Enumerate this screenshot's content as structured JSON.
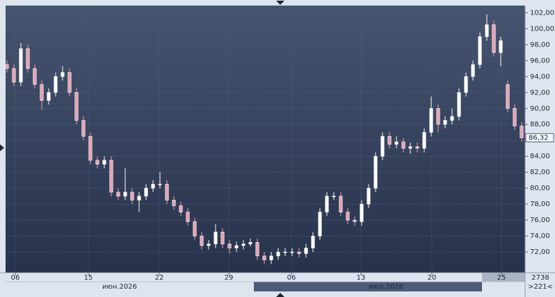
{
  "chart_data": {
    "type": "candlestick",
    "open": [
      95.5,
      95,
      93.3,
      97.5,
      95,
      93,
      91,
      92,
      94,
      94.5,
      92,
      88.5,
      86.5,
      83.5,
      83,
      83.5,
      79.5,
      79,
      79.5,
      78.5,
      79,
      80,
      80.5,
      80.5,
      78.5,
      77.8,
      77,
      75.8,
      74,
      72.8,
      73,
      74.5,
      73,
      72.5,
      72.8,
      73,
      73.2,
      71.5,
      71,
      71.5,
      72,
      72,
      72,
      71.8,
      72.5,
      74,
      77,
      79,
      79,
      77,
      76,
      75.8,
      78,
      80,
      84,
      86.5,
      85.5,
      85.8,
      85,
      85.2,
      85,
      87,
      90,
      88,
      88.5,
      89,
      92,
      94,
      95.5,
      99,
      100.5,
      97,
      93,
      90,
      87.8
    ],
    "high": [
      96,
      95.5,
      98.2,
      98,
      95.5,
      93.5,
      92.5,
      94.5,
      95.3,
      95,
      92.5,
      89,
      87,
      84,
      84,
      84,
      80,
      82.5,
      80,
      79.5,
      80.5,
      81,
      82,
      81,
      79,
      78.3,
      77.5,
      76.3,
      74.5,
      73.5,
      75.5,
      75,
      73.5,
      73.3,
      73.5,
      73.7,
      73.7,
      72,
      72,
      72.5,
      72.5,
      72.5,
      72.5,
      73,
      74.5,
      77.5,
      79.5,
      79.5,
      79.5,
      77.5,
      76.5,
      78.5,
      80.5,
      84.5,
      87,
      87,
      86.5,
      86.3,
      85.7,
      85.7,
      87.5,
      91.5,
      90.5,
      89,
      90,
      92.5,
      94.5,
      96,
      99.5,
      101.8,
      101,
      99,
      93.5,
      90.5,
      88.3
    ],
    "low": [
      94.5,
      92.8,
      92.8,
      94.5,
      92.5,
      89.8,
      90.5,
      91.5,
      93.5,
      91.5,
      88,
      86,
      83,
      82.5,
      82.5,
      79,
      78.5,
      78.5,
      78,
      77,
      78.5,
      79.5,
      80,
      78,
      77.3,
      76.5,
      75.3,
      73.5,
      72.3,
      72.3,
      72.5,
      72.5,
      71.8,
      72,
      72.3,
      72.7,
      71,
      70.5,
      70.5,
      71,
      71.5,
      71.5,
      71.3,
      71.3,
      72,
      73.5,
      76.5,
      78.5,
      76.5,
      75.5,
      75.3,
      75.3,
      77.5,
      79.5,
      83.5,
      85,
      85,
      84.5,
      84.3,
      84.5,
      84.5,
      86.5,
      87,
      87.5,
      88,
      88.5,
      91.5,
      93.5,
      95,
      98.5,
      96.5,
      95.3,
      89.5,
      87.3,
      85.8
    ],
    "close": [
      95,
      93.3,
      97.5,
      95,
      93,
      91,
      92,
      94,
      94.5,
      92,
      88.5,
      86.5,
      83.5,
      83,
      83.5,
      79.5,
      79,
      79.5,
      78.5,
      79,
      80,
      80.5,
      80.5,
      78.5,
      77.8,
      77,
      75.8,
      74,
      72.8,
      73,
      74.5,
      73,
      72.5,
      72.8,
      73,
      73.2,
      71.5,
      71,
      71.5,
      72,
      72,
      72,
      71.8,
      72.5,
      74,
      77,
      79,
      79,
      77,
      76,
      75.8,
      78,
      80,
      84,
      86.5,
      85.5,
      85.8,
      85,
      85.2,
      85,
      87,
      90,
      88,
      88.5,
      89,
      92,
      94,
      95.5,
      99,
      100.5,
      97,
      98.5,
      90,
      87.8,
      86.32
    ],
    "last_value_label": "86,32",
    "up_color": "#ffffff",
    "down_color": "#e8a3b4",
    "xlim": [
      -0.2,
      74.5
    ],
    "xticks": [
      {
        "value": 1.2,
        "label": "06"
      },
      {
        "value": 11.7,
        "label": "15"
      },
      {
        "value": 21.9,
        "label": "22"
      },
      {
        "value": 31.9,
        "label": "29"
      },
      {
        "value": 40.9,
        "label": "06"
      },
      {
        "value": 50.9,
        "label": "13"
      },
      {
        "value": 61.1,
        "label": "20"
      },
      {
        "value": 71.1,
        "label": "25"
      }
    ],
    "month_ticks": [
      {
        "value": 16.2,
        "label": "июн.2026"
      },
      {
        "value": 54.5,
        "label": "июл.2026"
      }
    ],
    "ylim": [
      69.4,
      102.9
    ],
    "yticks": [
      {
        "value": 72,
        "label": "72,00"
      },
      {
        "value": 74,
        "label": "74,00"
      },
      {
        "value": 76,
        "label": "76,00"
      },
      {
        "value": 78,
        "label": "78,00"
      },
      {
        "value": 80,
        "label": "80,00"
      },
      {
        "value": 82,
        "label": "82,00"
      },
      {
        "value": 84,
        "label": "84,00"
      },
      {
        "value": 86,
        "label": "86,00"
      },
      {
        "value": 88,
        "label": "88,00"
      },
      {
        "value": 90,
        "label": "90,00"
      },
      {
        "value": 92,
        "label": "92,00"
      },
      {
        "value": 94,
        "label": "94,00"
      },
      {
        "value": 96,
        "label": "96,00"
      },
      {
        "value": 98,
        "label": "98,00"
      },
      {
        "value": 100,
        "label": "100,00"
      },
      {
        "value": 102,
        "label": "102,00"
      }
    ],
    "grid": true,
    "footer_texts": [
      "2738",
      ">221<"
    ]
  }
}
